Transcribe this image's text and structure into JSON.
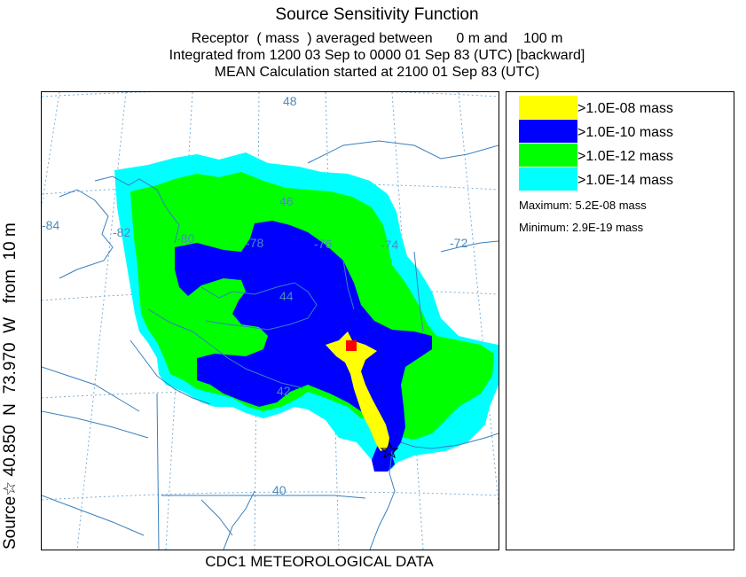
{
  "header": {
    "title": "Source Sensitivity Function",
    "line2": "Receptor  ( mass  ) averaged between      0 m and    100 m",
    "line3": "Integrated from 1200 03 Sep to 0000 01 Sep 83 (UTC) [backward]",
    "line4": "MEAN Calculation started at 2100 01 Sep 83 (UTC)"
  },
  "source_label": "Source☆ 40.850  N  73.970  W   from  10 m",
  "footer": "CDC1 METEOROLOGICAL DATA",
  "map": {
    "longitude_labels": [
      "-84",
      "-82",
      "-80",
      "-78",
      "-76",
      "-74",
      "-72"
    ],
    "latitude_labels": [
      "48",
      "46",
      "44",
      "42",
      "40"
    ],
    "colors": {
      "cyan": "#00ffff",
      "green": "#00ff00",
      "blue": "#0000ff",
      "yellow": "#ffff00",
      "receptor": "#ff0000",
      "boundary": "#3a7fbf",
      "grid": "#7aaed6"
    }
  },
  "legend": {
    "items": [
      {
        "color": "#ffff00",
        "label": ">1.0E-08  mass"
      },
      {
        "color": "#0000ff",
        "label": ">1.0E-10  mass"
      },
      {
        "color": "#00ff00",
        "label": ">1.0E-12  mass"
      },
      {
        "color": "#00ffff",
        "label": ">1.0E-14  mass"
      }
    ],
    "maximum": "Maximum: 5.2E-08  mass",
    "minimum": "Minimum: 2.9E-19  mass"
  }
}
